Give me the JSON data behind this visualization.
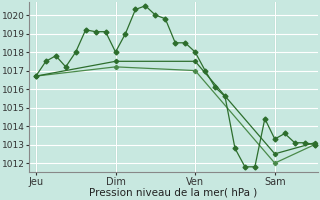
{
  "background_color": "#c8e8e0",
  "grid_color": "#ffffff",
  "line_color": "#2d6e2d",
  "line_color2": "#4a8a4a",
  "xlabel": "Pression niveau de la mer( hPa )",
  "ylim": [
    1011.5,
    1020.7
  ],
  "yticks": [
    1012,
    1013,
    1014,
    1015,
    1016,
    1017,
    1018,
    1019,
    1020
  ],
  "day_labels": [
    "Jeu",
    "Dim",
    "Ven",
    "Sam"
  ],
  "day_positions": [
    0,
    48,
    96,
    144
  ],
  "xlim": [
    -4,
    170
  ],
  "series1_x": [
    0,
    6,
    12,
    18,
    24,
    30,
    36,
    42,
    48,
    54,
    60,
    66,
    72,
    78,
    84,
    90,
    96,
    102,
    108,
    114,
    120,
    126,
    132,
    138,
    144,
    150,
    156,
    162,
    168
  ],
  "series1_y": [
    1016.7,
    1017.5,
    1017.8,
    1017.2,
    1018.0,
    1019.2,
    1019.1,
    1019.1,
    1018.0,
    1019.0,
    1020.3,
    1020.5,
    1020.0,
    1019.8,
    1018.5,
    1018.5,
    1018.0,
    1017.0,
    1016.1,
    1015.6,
    1012.8,
    1011.8,
    1011.8,
    1014.4,
    1013.3,
    1013.6,
    1013.1,
    1013.1,
    1013.0
  ],
  "series2_x": [
    0,
    48,
    96,
    144,
    168
  ],
  "series2_y": [
    1016.7,
    1017.2,
    1017.0,
    1012.0,
    1013.0
  ],
  "series3_x": [
    0,
    48,
    96,
    144,
    168
  ],
  "series3_y": [
    1016.7,
    1017.5,
    1017.5,
    1012.5,
    1013.1
  ],
  "sep_line_color": "#5a9a6a",
  "xlabel_fontsize": 7.5,
  "tick_fontsize": 6.5,
  "day_fontsize": 7.0
}
